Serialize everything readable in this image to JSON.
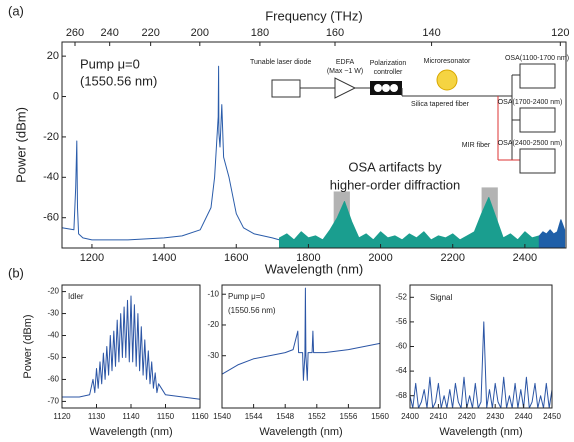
{
  "chart_data": [
    {
      "type": "line",
      "panel_label": "(a)",
      "xlabel": "Wavelength (nm)",
      "ylabel": "Power (dBm)",
      "x2label": "Frequency (THz)",
      "xlim": [
        1117,
        2514
      ],
      "ylim": [
        -75,
        27
      ],
      "xticks": [
        1200,
        1400,
        1600,
        1800,
        2000,
        2200,
        2400
      ],
      "yticks": [
        -60,
        -40,
        -20,
        0,
        20
      ],
      "x2ticks": [
        260,
        240,
        220,
        200,
        180,
        160,
        140,
        120
      ],
      "annotations": [
        "Pump μ=0",
        "(1550.56 nm)",
        "OSA artifacts by",
        "higher-order diffraction"
      ],
      "shaded_regions": [
        {
          "x": [
            1870,
            1915
          ],
          "y": [
            -75,
            -47
          ]
        },
        {
          "x": [
            2280,
            2325
          ],
          "y": [
            -75,
            -45
          ]
        }
      ],
      "series": [
        {
          "color": "#2a5caa",
          "area": false,
          "x": [
            1117,
            1150,
            1155,
            1158,
            1160,
            1163,
            1175,
            1200,
            1300,
            1400,
            1450,
            1500,
            1530,
            1540,
            1550,
            1551,
            1552,
            1555,
            1560,
            1565,
            1580,
            1600,
            1620,
            1650,
            1700,
            1720
          ],
          "values": [
            -65,
            -66,
            -45,
            -22,
            -55,
            -68,
            -70,
            -71,
            -71,
            -70,
            -69,
            -66,
            -55,
            -40,
            -10,
            15,
            -18,
            -25,
            -4,
            -30,
            -40,
            -58,
            -65,
            -68,
            -70,
            -71
          ]
        },
        {
          "color": "#1a9e8f",
          "area": true,
          "x": [
            1720,
            1740,
            1760,
            1780,
            1800,
            1820,
            1840,
            1860,
            1880,
            1900,
            1920,
            1940,
            1960,
            1980,
            2000,
            2020,
            2040,
            2060,
            2080,
            2100,
            2120,
            2140,
            2160,
            2180,
            2200,
            2220,
            2240,
            2260,
            2280,
            2300,
            2320,
            2340,
            2360,
            2380,
            2400,
            2420,
            2440
          ],
          "values": [
            -70,
            -68,
            -71,
            -67,
            -70,
            -69,
            -71,
            -66,
            -60,
            -52,
            -62,
            -70,
            -68,
            -71,
            -67,
            -70,
            -69,
            -71,
            -68,
            -70,
            -67,
            -71,
            -69,
            -70,
            -68,
            -71,
            -69,
            -67,
            -58,
            -50,
            -60,
            -70,
            -68,
            -71,
            -67,
            -70,
            -69
          ]
        },
        {
          "color": "#1f5fa8",
          "area": true,
          "x": [
            2440,
            2450,
            2460,
            2470,
            2480,
            2490,
            2500,
            2510
          ],
          "values": [
            -69,
            -67,
            -68,
            -66,
            -68,
            -67,
            -61,
            -66
          ]
        }
      ],
      "inset": [
        "Tunable laser diode",
        "EDFA",
        "(Max ~1 W)",
        "Polarization",
        "controller",
        "Microresonator",
        "Silica tapered fiber",
        "OSA(1100-1700 nm)",
        "OSA(1700-2400 nm)",
        "OSA(2400-2500 nm)",
        "MIR fiber"
      ]
    },
    {
      "type": "line",
      "panel_label": "(b)",
      "xlabel": "Wavelength (nm)",
      "ylabel": "Power (dBm)",
      "xlim": [
        1120,
        1160
      ],
      "ylim": [
        -73,
        -17
      ],
      "xticks": [
        1120,
        1130,
        1140,
        1150,
        1160
      ],
      "yticks": [
        -20,
        -30,
        -40,
        -50,
        -60,
        -70
      ],
      "annotations": [
        "Idler"
      ],
      "series": [
        {
          "color": "#2b55a5",
          "area": false,
          "x": [
            1120,
            1125,
            1128,
            1129,
            1129.5,
            1130,
            1130.5,
            1131,
            1131.5,
            1132,
            1132.5,
            1133,
            1133.5,
            1134,
            1134.5,
            1135,
            1135.5,
            1136,
            1136.5,
            1137,
            1137.5,
            1138,
            1138.5,
            1139,
            1139.5,
            1140,
            1140.5,
            1141,
            1141.5,
            1142,
            1142.5,
            1143,
            1143.5,
            1144,
            1144.5,
            1145,
            1145.5,
            1146,
            1146.5,
            1147,
            1147.5,
            1148,
            1150,
            1155,
            1160
          ],
          "values": [
            -68,
            -68,
            -67,
            -60,
            -66,
            -55,
            -64,
            -52,
            -62,
            -48,
            -60,
            -45,
            -58,
            -40,
            -56,
            -38,
            -54,
            -33,
            -52,
            -30,
            -50,
            -27,
            -50,
            -24,
            -52,
            -22,
            -52,
            -26,
            -54,
            -30,
            -56,
            -36,
            -58,
            -42,
            -60,
            -47,
            -62,
            -52,
            -64,
            -57,
            -66,
            -62,
            -67,
            -68,
            -69
          ]
        }
      ]
    },
    {
      "type": "line",
      "xlabel": "Wavelength (nm)",
      "xlim": [
        1540,
        1560
      ],
      "ylim": [
        -47,
        -7
      ],
      "xticks": [
        1540,
        1544,
        1548,
        1552,
        1556,
        1560
      ],
      "yticks": [
        -10,
        -20,
        -30
      ],
      "annotations": [
        "Pump μ=0",
        "(1550.56 nm)"
      ],
      "series": [
        {
          "color": "#2b55a5",
          "area": false,
          "x": [
            1540,
            1542,
            1544,
            1546,
            1548,
            1549,
            1549.6,
            1549.7,
            1550.2,
            1550.3,
            1550.5,
            1550.56,
            1550.62,
            1550.8,
            1550.9,
            1551.4,
            1551.5,
            1551.6,
            1553,
            1556,
            1558,
            1560
          ],
          "values": [
            -36,
            -33,
            -31,
            -30,
            -29,
            -28,
            -22,
            -29,
            -29,
            -38,
            -30,
            -8,
            -30,
            -38,
            -29,
            -29,
            -22,
            -29,
            -29,
            -28,
            -27,
            -26
          ]
        }
      ]
    },
    {
      "type": "line",
      "xlabel": "Wavelength (nm)",
      "xlim": [
        2400,
        2450
      ],
      "ylim": [
        -70,
        -50
      ],
      "xticks": [
        2400,
        2410,
        2420,
        2430,
        2440,
        2450
      ],
      "yticks": [
        -52,
        -56,
        -60,
        -64,
        -68
      ],
      "annotations": [
        "Signal"
      ],
      "series": [
        {
          "color": "#2b55a5",
          "area": false,
          "x": [
            2400,
            2401,
            2402,
            2403,
            2404,
            2405,
            2406,
            2407,
            2408,
            2409,
            2410,
            2411,
            2412,
            2413,
            2414,
            2415,
            2416,
            2417,
            2418,
            2419,
            2420,
            2421,
            2422,
            2423,
            2424,
            2425,
            2426,
            2427,
            2428,
            2429,
            2430,
            2431,
            2432,
            2433,
            2434,
            2435,
            2436,
            2437,
            2438,
            2439,
            2440,
            2441,
            2442,
            2443,
            2444,
            2445,
            2446,
            2447,
            2448,
            2449,
            2450
          ],
          "values": [
            -68,
            -70,
            -66,
            -70,
            -69,
            -67,
            -70,
            -65,
            -70,
            -69,
            -66,
            -70,
            -68,
            -70,
            -67,
            -70,
            -66,
            -69,
            -70,
            -65,
            -70,
            -68,
            -70,
            -66,
            -70,
            -69,
            -56,
            -70,
            -67,
            -70,
            -66,
            -69,
            -70,
            -65,
            -70,
            -68,
            -70,
            -66,
            -70,
            -67,
            -70,
            -65,
            -70,
            -69,
            -66,
            -70,
            -68,
            -70,
            -66,
            -70,
            -67
          ]
        }
      ]
    }
  ]
}
